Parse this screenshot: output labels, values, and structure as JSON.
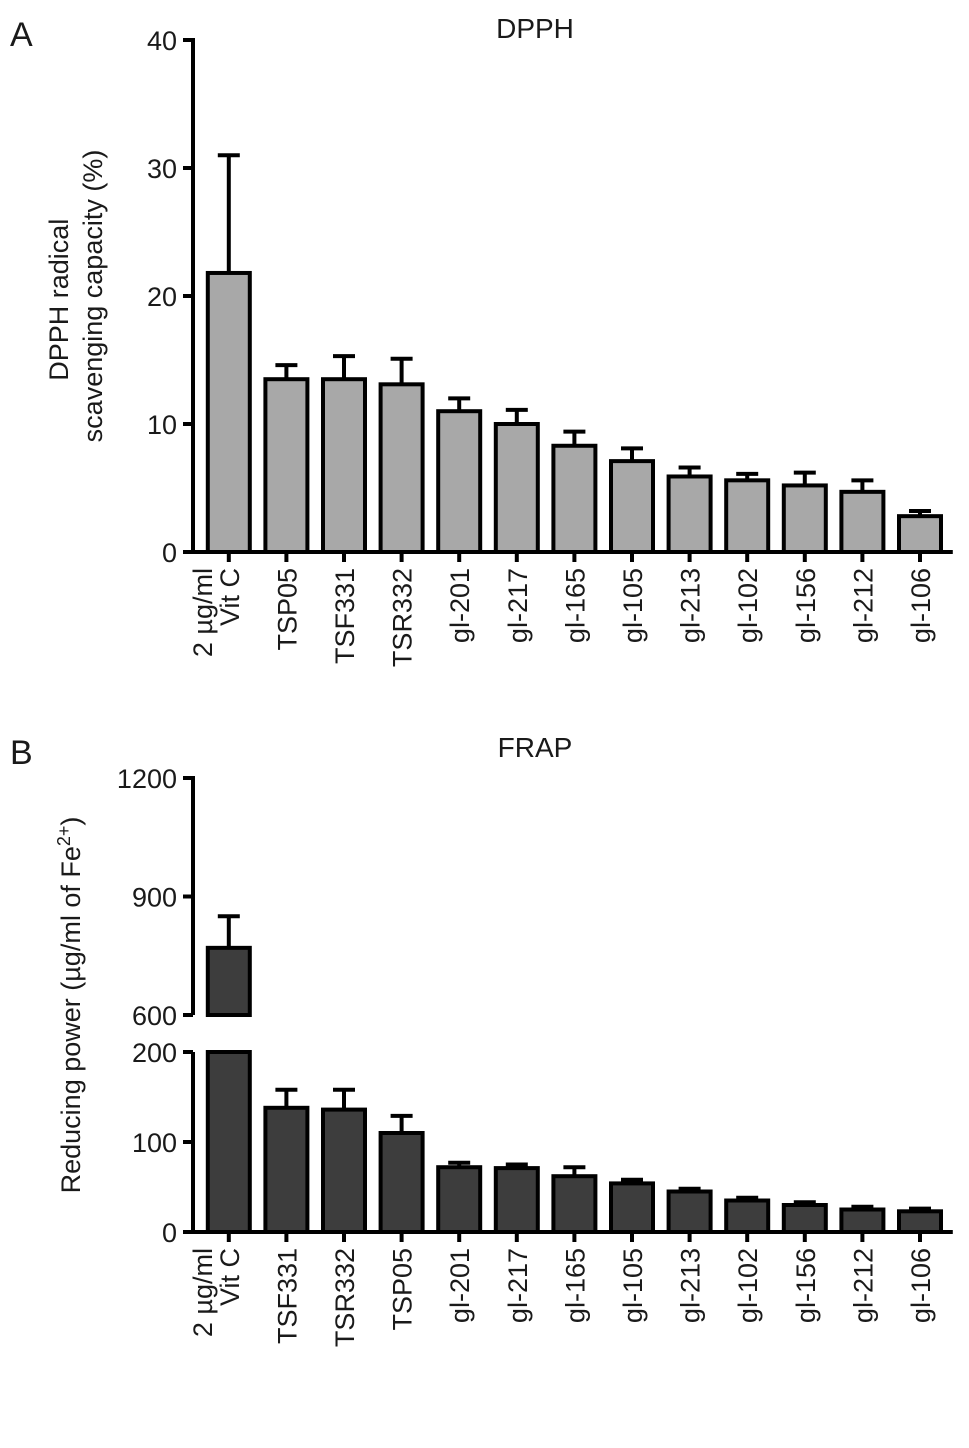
{
  "chart_data": [
    {
      "panel_letter": "A",
      "type": "bar",
      "title": "DPPH",
      "ylabel_lines": [
        "DPPH radical",
        "scavenging capacity (%)"
      ],
      "categories": [
        [
          "2 µg/ml",
          "Vit C"
        ],
        [
          "TSP05"
        ],
        [
          "TSF331"
        ],
        [
          "TSR332"
        ],
        [
          "gl-201"
        ],
        [
          "gl-217"
        ],
        [
          "gl-165"
        ],
        [
          "gl-105"
        ],
        [
          "gl-213"
        ],
        [
          "gl-102"
        ],
        [
          "gl-156"
        ],
        [
          "gl-212"
        ],
        [
          "gl-106"
        ]
      ],
      "values": [
        21.8,
        13.5,
        13.5,
        13.1,
        11.0,
        10.0,
        8.3,
        7.1,
        5.9,
        5.6,
        5.2,
        4.7,
        2.8
      ],
      "errors": [
        9.2,
        1.1,
        1.8,
        2.0,
        1.0,
        1.1,
        1.1,
        1.0,
        0.7,
        0.5,
        1.0,
        0.9,
        0.4
      ],
      "ylim": [
        0,
        40
      ],
      "yticks": [
        "0",
        "10",
        "20",
        "30",
        "40"
      ],
      "bar_color": "#a8a8a8",
      "grid": false
    },
    {
      "panel_letter": "B",
      "type": "bar",
      "title": "FRAP",
      "ylabel": "Reducing power (µg/ml of Fe",
      "ylabel_sup": "2+",
      "ylabel_end": ")",
      "categories": [
        [
          "2 µg/ml",
          "Vit C"
        ],
        [
          "TSF331"
        ],
        [
          "TSR332"
        ],
        [
          "TSP05"
        ],
        [
          "gl-201"
        ],
        [
          "gl-217"
        ],
        [
          "gl-165"
        ],
        [
          "gl-105"
        ],
        [
          "gl-213"
        ],
        [
          "gl-102"
        ],
        [
          "gl-156"
        ],
        [
          "gl-212"
        ],
        [
          "gl-106"
        ]
      ],
      "values": [
        770,
        138,
        136,
        110,
        72,
        71,
        62,
        54,
        45,
        35,
        30,
        25,
        23
      ],
      "errors": [
        80,
        20,
        22,
        19,
        5,
        4,
        10,
        4,
        3,
        3,
        3,
        3,
        3
      ],
      "y_axis_break": {
        "lower": [
          0,
          200
        ],
        "upper": [
          600,
          1200
        ]
      },
      "yticks": [
        "0",
        "100",
        "200",
        "600",
        "900",
        "1200"
      ],
      "bar_color": "#3d3d3d",
      "grid": false
    }
  ]
}
